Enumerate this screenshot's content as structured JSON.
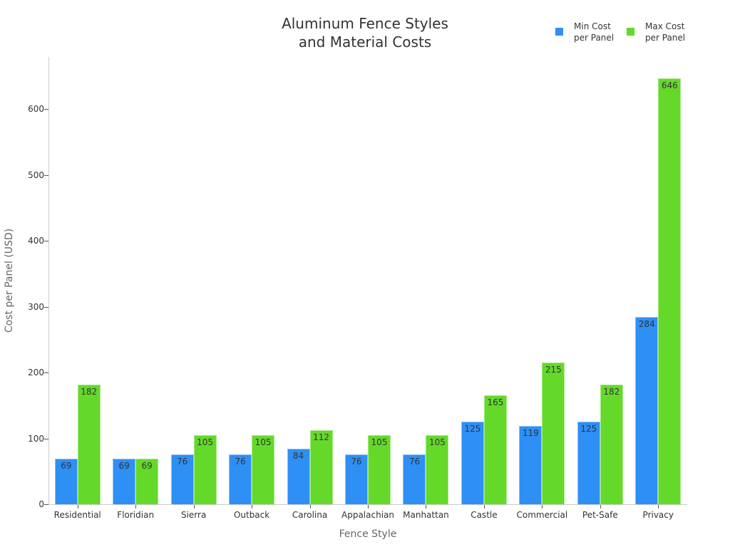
{
  "chart_data": {
    "type": "bar",
    "title": "Aluminum Fence Styles and Material Costs",
    "title_lines": [
      "Aluminum Fence Styles",
      "and Material Costs"
    ],
    "xlabel": "Fence Style",
    "ylabel": "Cost per Panel (USD)",
    "ylim": [
      0,
      680
    ],
    "yticks": [
      0,
      100,
      200,
      300,
      400,
      500,
      600
    ],
    "grid": false,
    "legend_position": "top-right",
    "categories": [
      "Residential",
      "Floridian",
      "Sierra",
      "Outback",
      "Carolina",
      "Appalachian",
      "Manhattan",
      "Castle",
      "Commercial",
      "Pet-Safe",
      "Privacy"
    ],
    "series": [
      {
        "name": "Min Cost per Panel",
        "legend_lines": [
          "Min Cost",
          "per Panel"
        ],
        "color": "#2e8ff5",
        "values": [
          69,
          69,
          76,
          76,
          84,
          76,
          76,
          125,
          119,
          125,
          284
        ]
      },
      {
        "name": "Max Cost per Panel",
        "legend_lines": [
          "Max Cost",
          "per Panel"
        ],
        "color": "#64d92a",
        "values": [
          182,
          69,
          105,
          105,
          112,
          105,
          105,
          165,
          215,
          182,
          646
        ]
      }
    ]
  }
}
